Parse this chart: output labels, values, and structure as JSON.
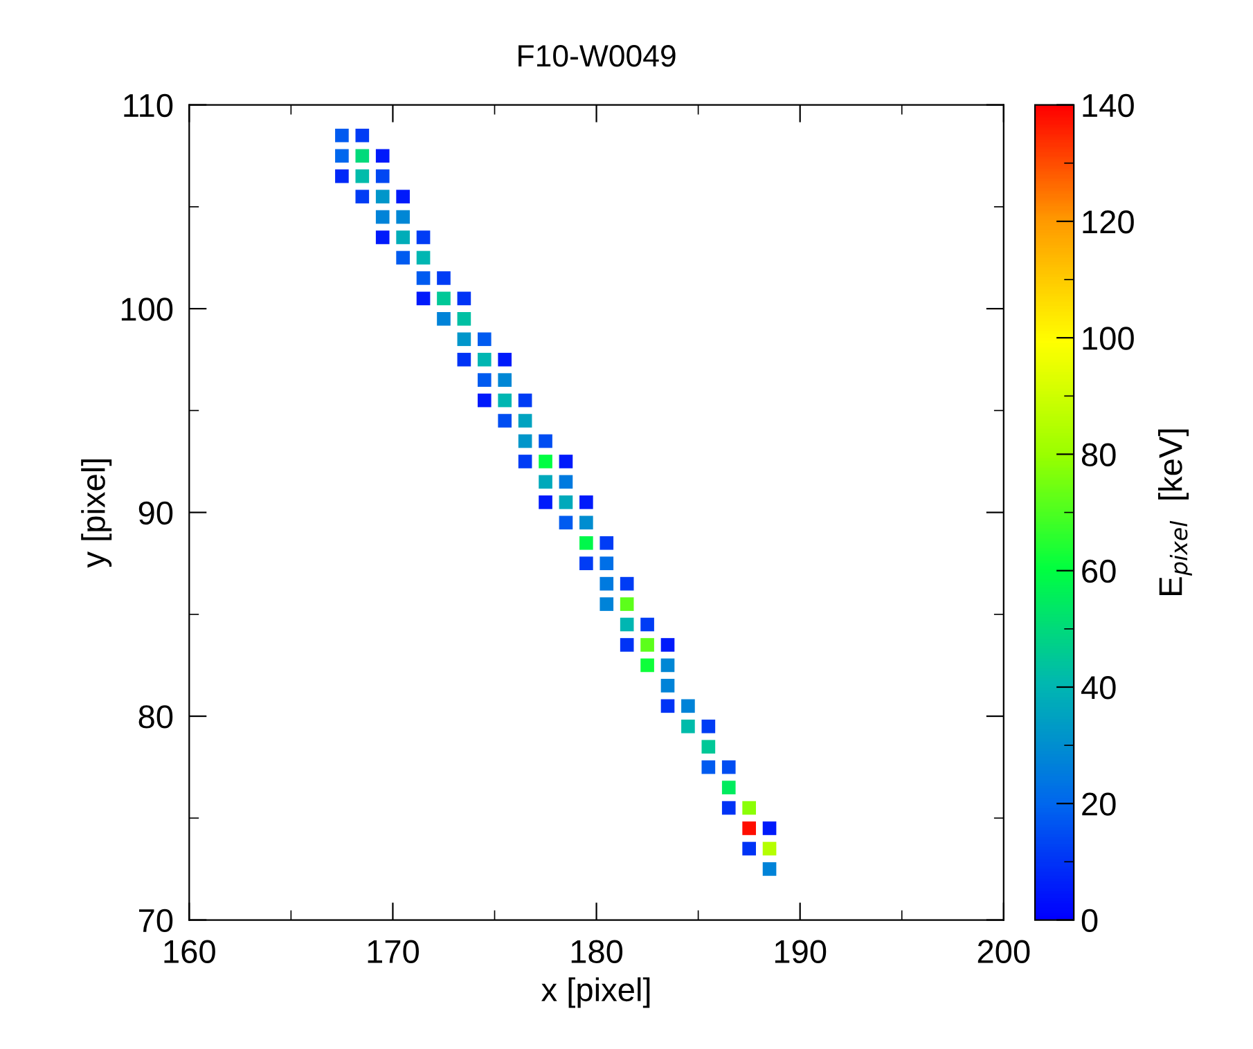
{
  "chart_data": {
    "type": "scatter",
    "title": "F10-W0049",
    "xlabel": "x [pixel]",
    "ylabel": "y [pixel]",
    "clabel": "E$_{pixel}$  [keV]",
    "xlim": [
      160,
      200
    ],
    "ylim": [
      70,
      110
    ],
    "xticks": [
      160,
      170,
      180,
      190,
      200
    ],
    "yticks": [
      70,
      80,
      90,
      100,
      110
    ],
    "clim": [
      0,
      140
    ],
    "cticks": [
      0,
      20,
      40,
      60,
      80,
      100,
      120,
      140
    ],
    "grid": false,
    "marker": "square",
    "series": [
      {
        "x": [
          167.5,
          168.5,
          167.5,
          168.5,
          169.5,
          167.5,
          168.5,
          169.5,
          168.5,
          169.5,
          170.5,
          169.5,
          170.5,
          169.5,
          170.5,
          171.5,
          170.5,
          171.5,
          171.5,
          172.5,
          171.5,
          172.5,
          173.5,
          172.5,
          173.5,
          173.5,
          174.5,
          173.5,
          174.5,
          175.5,
          174.5,
          175.5,
          174.5,
          175.5,
          176.5,
          175.5,
          176.5,
          176.5,
          177.5,
          176.5,
          177.5,
          178.5,
          177.5,
          178.5,
          177.5,
          178.5,
          179.5,
          178.5,
          179.5,
          179.5,
          180.5,
          179.5,
          180.5,
          180.5,
          181.5,
          180.5,
          181.5,
          181.5,
          182.5,
          181.5,
          182.5,
          183.5,
          182.5,
          183.5,
          183.5,
          183.5,
          184.5,
          184.5,
          185.5,
          185.5,
          185.5,
          186.5,
          186.5,
          186.5,
          187.5,
          187.5,
          188.5,
          187.5,
          188.5,
          188.5
        ],
        "values": [
          108.5,
          108.5,
          107.5,
          107.5,
          107.5,
          106.5,
          106.5,
          106.5,
          105.5,
          105.5,
          105.5,
          104.5,
          104.5,
          103.5,
          103.5,
          103.5,
          102.5,
          102.5,
          101.5,
          101.5,
          100.5,
          100.5,
          100.5,
          99.5,
          99.5,
          98.5,
          98.5,
          97.5,
          97.5,
          97.5,
          96.5,
          96.5,
          95.5,
          95.5,
          95.5,
          94.5,
          94.5,
          93.5,
          93.5,
          92.5,
          92.5,
          92.5,
          91.5,
          91.5,
          90.5,
          90.5,
          90.5,
          89.5,
          89.5,
          88.5,
          88.5,
          87.5,
          87.5,
          86.5,
          86.5,
          85.5,
          85.5,
          84.5,
          84.5,
          83.5,
          83.5,
          83.5,
          82.5,
          82.5,
          81.5,
          80.5,
          80.5,
          79.5,
          79.5,
          78.5,
          77.5,
          77.5,
          76.5,
          75.5,
          75.5,
          74.5,
          74.5,
          73.5,
          73.5,
          72.5
        ],
        "cvalues": [
          18,
          12,
          20,
          50,
          5,
          8,
          42,
          14,
          12,
          32,
          5,
          27,
          28,
          5,
          38,
          12,
          18,
          40,
          18,
          12,
          5,
          45,
          10,
          27,
          43,
          32,
          18,
          10,
          40,
          5,
          18,
          28,
          5,
          40,
          12,
          15,
          35,
          32,
          15,
          12,
          60,
          5,
          37,
          25,
          5,
          37,
          5,
          18,
          30,
          58,
          12,
          12,
          22,
          25,
          12,
          27,
          72,
          40,
          12,
          10,
          72,
          5,
          62,
          28,
          27,
          10,
          27,
          42,
          12,
          45,
          18,
          15,
          55,
          10,
          78,
          138,
          5,
          10,
          85,
          27
        ]
      }
    ]
  }
}
